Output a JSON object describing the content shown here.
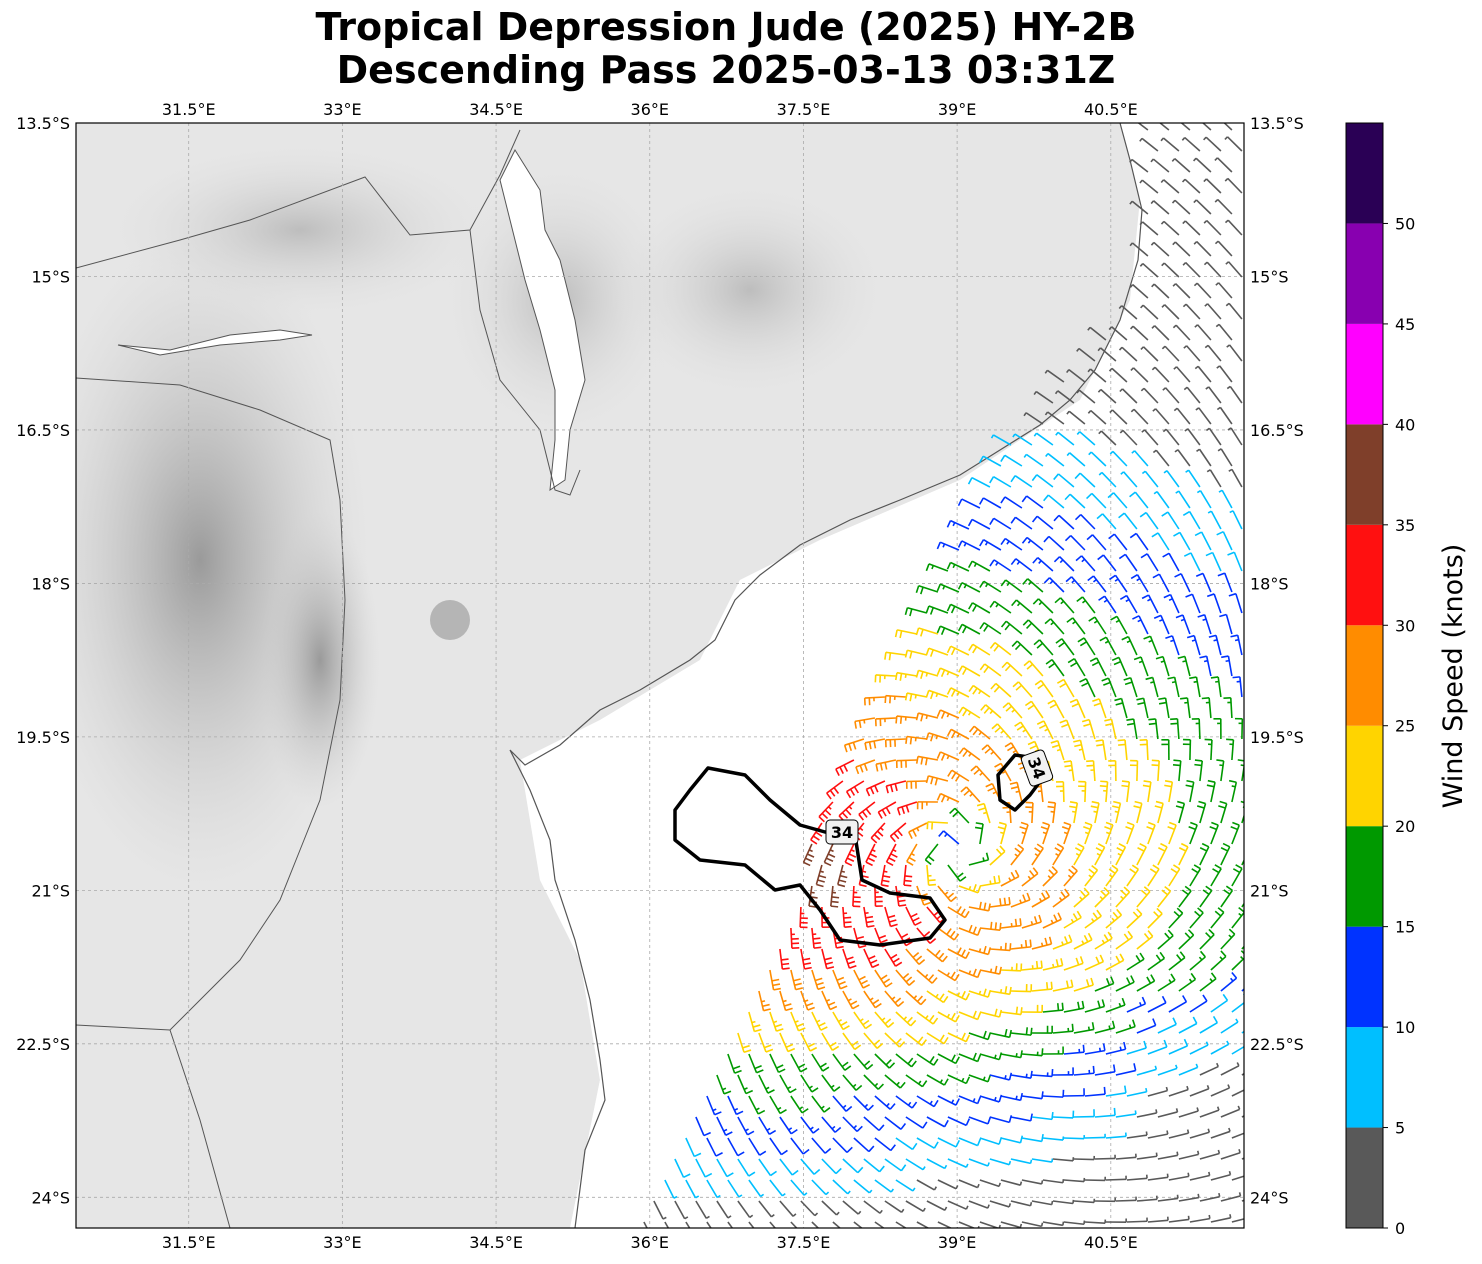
{
  "title": {
    "line1": "Tropical Depression Jude (2025) HY-2B",
    "line2": "Descending Pass 2025-03-13 03:31Z"
  },
  "map": {
    "lon_range": [
      30.4,
      41.8
    ],
    "lat_range": [
      -24.3,
      -13.5
    ],
    "lon_ticks": [
      "31.5°E",
      "33°E",
      "34.5°E",
      "36°E",
      "37.5°E",
      "39°E",
      "40.5°E"
    ],
    "lat_ticks": [
      "13.5°S",
      "15°S",
      "16.5°S",
      "18°S",
      "19.5°S",
      "21°S",
      "22.5°S",
      "24°S"
    ],
    "contour_label": "34",
    "contour_level_kt": 34,
    "basemap": "grayscale terrain with coastlines and borders",
    "grid": true
  },
  "colorbar": {
    "label": "Wind Speed (knots)",
    "ticks": [
      "0",
      "5",
      "10",
      "15",
      "20",
      "25",
      "30",
      "35",
      "40",
      "45",
      "50"
    ],
    "bins": [
      {
        "min": 0,
        "max": 5,
        "color": "#595959"
      },
      {
        "min": 5,
        "max": 10,
        "color": "#00bfff"
      },
      {
        "min": 10,
        "max": 15,
        "color": "#0033ff"
      },
      {
        "min": 15,
        "max": 20,
        "color": "#009900"
      },
      {
        "min": 20,
        "max": 25,
        "color": "#ffd400"
      },
      {
        "min": 25,
        "max": 30,
        "color": "#ff8c00"
      },
      {
        "min": 30,
        "max": 35,
        "color": "#ff1010"
      },
      {
        "min": 35,
        "max": 40,
        "color": "#7f3f2a"
      },
      {
        "min": 40,
        "max": 45,
        "color": "#ff00ff"
      },
      {
        "min": 45,
        "max": 50,
        "color": "#8800b0"
      },
      {
        "min": 50,
        "max": 55,
        "color": "#2a0055"
      }
    ]
  },
  "wind_field": {
    "center_lon": 39.0,
    "center_lat": -20.6,
    "max_speed_kt": 38,
    "high_wind_zone": {
      "lon": 37.3,
      "lat": -20.7,
      "speed_kt": 36
    }
  }
}
